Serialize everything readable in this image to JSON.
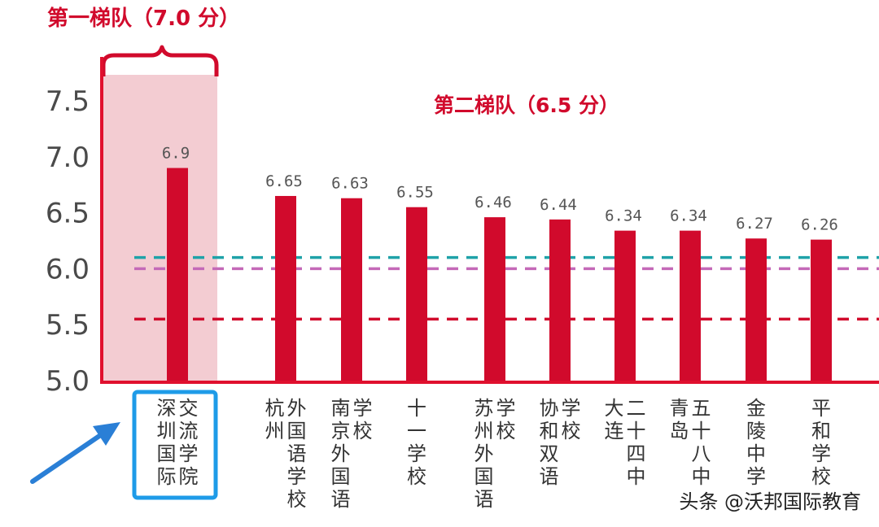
{
  "colors": {
    "bar": "#d10a2c",
    "highlight_fill": "#f3ccd2",
    "axis": "#e0102e",
    "callout_box": "#1e9be8",
    "arrow": "#2a7fd6",
    "line_teal": "#1fa2a8",
    "line_pink": "#c469b8",
    "line_red": "#d10a2c"
  },
  "tiers": {
    "first": "第一梯队（7.0 分）",
    "second": "第二梯队（6.5 分）"
  },
  "watermark": "头条 @沃邦国际教育",
  "chart_data": {
    "type": "bar",
    "categories": [
      "深圳国际交流学院",
      "杭州外国语学校",
      "南京外国语学校",
      "十一学校",
      "苏州外国语学校",
      "协和双语学校",
      "大连二十四中",
      "青岛五十八中",
      "金陵中学",
      "平和学校"
    ],
    "category_label_columns": [
      [
        "深圳国际",
        "交流学院"
      ],
      [
        "杭州",
        "外国语学校"
      ],
      [
        "南京外国语",
        "学校"
      ],
      [
        "十一学校"
      ],
      [
        "苏州外国语",
        "学校"
      ],
      [
        "协和双语",
        "学校"
      ],
      [
        "大连",
        "二十四中"
      ],
      [
        "青岛",
        "五十八中"
      ],
      [
        "金陵中学"
      ],
      [
        "平和学校"
      ]
    ],
    "values": [
      6.9,
      6.65,
      6.63,
      6.55,
      6.46,
      6.44,
      6.34,
      6.34,
      6.27,
      6.26
    ],
    "data_labels": [
      "6.9",
      "6.65",
      "6.63",
      "6.55",
      "6.46",
      "6.44",
      "6.34",
      "6.34",
      "6.27",
      "6.26"
    ],
    "ylim": [
      5.0,
      7.8
    ],
    "yticks": [
      "5.0",
      "5.5",
      "6.0",
      "6.5",
      "7.0",
      "7.5"
    ],
    "reference_lines": [
      {
        "value": 6.1,
        "color": "teal"
      },
      {
        "value": 6.0,
        "color": "pink"
      },
      {
        "value": 5.55,
        "color": "red"
      }
    ],
    "highlighted_category": "深圳国际交流学院",
    "grid": false,
    "title": "",
    "xlabel": "",
    "ylabel": ""
  }
}
